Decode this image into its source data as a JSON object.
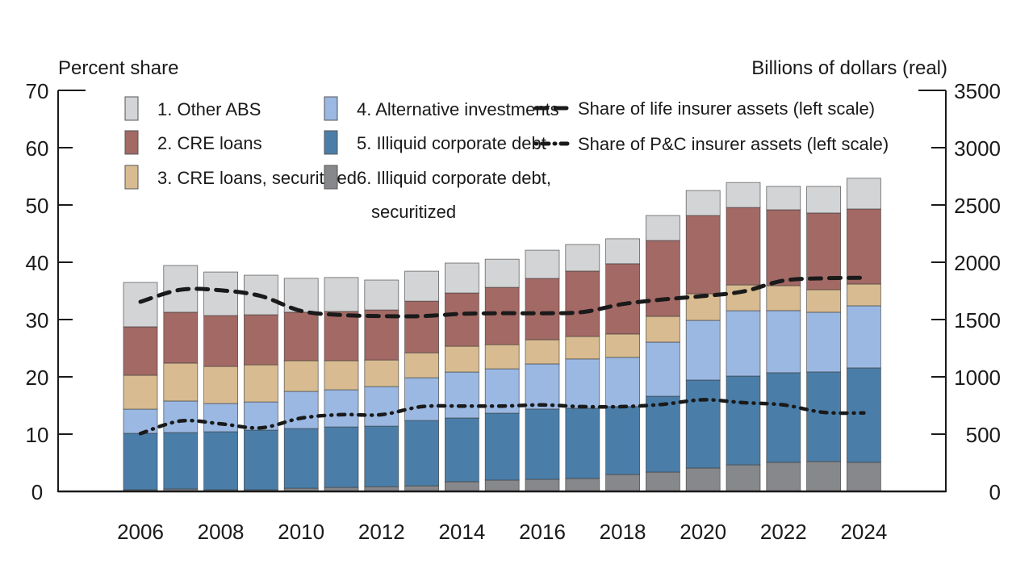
{
  "chart_data": {
    "type": "bar",
    "subtype": "stacked bar with line overlay (dual axis)",
    "title": "",
    "left_axis": {
      "label": "Percent share",
      "range": [
        0,
        70
      ],
      "ticks": [
        "0",
        "10",
        "20",
        "30",
        "40",
        "50",
        "60",
        "70"
      ]
    },
    "right_axis": {
      "label": "Billions of dollars (real)",
      "range": [
        0,
        3500
      ],
      "ticks": [
        "0",
        "500",
        "1000",
        "1500",
        "2000",
        "2500",
        "3000",
        "3500"
      ]
    },
    "x_tick_labels": [
      "2006",
      "2008",
      "2010",
      "2012",
      "2014",
      "2016",
      "2018",
      "2020",
      "2022",
      "2024"
    ],
    "categories": [
      "2006",
      "2007",
      "2008",
      "2009",
      "2010",
      "2011",
      "2012",
      "2013",
      "2014",
      "2015",
      "2016",
      "2017",
      "2018",
      "2019",
      "2020",
      "2021",
      "2022",
      "2023",
      "2024"
    ],
    "grid": false,
    "legend_position": "top-inside",
    "series": [
      {
        "name": "6. Illiquid corporate debt, securitized",
        "legend_lines": [
          "6. Illiquid corporate debt,",
          "securitized"
        ],
        "axis": "right",
        "kind": "bar",
        "color": "#87888c",
        "values": [
          14,
          21,
          14,
          14,
          28,
          35,
          42,
          49,
          85,
          99,
          106,
          113,
          148,
          169,
          204,
          232,
          254,
          261,
          254
        ]
      },
      {
        "name": "5. Illiquid corporate debt",
        "legend_lines": [
          "5. Illiquid corporate debt"
        ],
        "axis": "right",
        "kind": "bar",
        "color": "#4a7ea9",
        "values": [
          493,
          493,
          507,
          521,
          521,
          528,
          528,
          570,
          556,
          584,
          613,
          613,
          592,
          662,
          768,
          775,
          782,
          782,
          824
        ]
      },
      {
        "name": "4. Alternative investments",
        "legend_lines": [
          "4. Alternative investments"
        ],
        "axis": "right",
        "kind": "bar",
        "color": "#9ab8e2",
        "values": [
          211,
          275,
          246,
          246,
          324,
          324,
          345,
          373,
          401,
          387,
          394,
          430,
          430,
          472,
          521,
          570,
          542,
          521,
          542
        ]
      },
      {
        "name": "3. CRE loans, securitized",
        "legend_lines": [
          "3. CRE loans, securitized"
        ],
        "axis": "right",
        "kind": "bar",
        "color": "#d8bb90",
        "values": [
          296,
          331,
          324,
          324,
          268,
          254,
          232,
          218,
          225,
          211,
          211,
          197,
          204,
          225,
          232,
          225,
          218,
          197,
          190
        ]
      },
      {
        "name": "2. CRE loans",
        "legend_lines": [
          "2. CRE loans"
        ],
        "axis": "right",
        "kind": "bar",
        "color": "#a36965",
        "values": [
          423,
          444,
          444,
          437,
          423,
          430,
          437,
          451,
          465,
          500,
          535,
          570,
          613,
          662,
          683,
          676,
          662,
          669,
          655
        ]
      },
      {
        "name": "1. Other ABS",
        "legend_lines": [
          "1. Other ABS"
        ],
        "axis": "right",
        "kind": "bar",
        "color": "#d3d4d6",
        "values": [
          387,
          408,
          380,
          345,
          296,
          296,
          261,
          261,
          261,
          246,
          246,
          232,
          218,
          218,
          218,
          218,
          204,
          232,
          268
        ]
      },
      {
        "name": "Share of life insurer assets (left scale)",
        "axis": "left",
        "kind": "line",
        "style": "dashed",
        "color": "#1a1a1a",
        "values": [
          33.1,
          35.2,
          35.1,
          34.1,
          31.5,
          30.8,
          30.6,
          30.6,
          31.0,
          31.1,
          31.1,
          31.3,
          32.7,
          33.5,
          34.1,
          34.9,
          36.8,
          37.2,
          37.3
        ]
      },
      {
        "name": "Share of P&C insurer assets (left scale)",
        "axis": "left",
        "kind": "line",
        "style": "dash-dot",
        "color": "#1a1a1a",
        "values": [
          10.1,
          12.3,
          11.8,
          11.1,
          12.8,
          13.4,
          13.4,
          14.8,
          14.9,
          14.9,
          15.1,
          14.8,
          14.8,
          15.2,
          16.0,
          15.5,
          15.1,
          13.8,
          13.7
        ]
      }
    ],
    "legend_order": [
      "1. Other ABS",
      "2. CRE loans",
      "3. CRE loans, securitized",
      "4. Alternative investments",
      "5. Illiquid corporate debt",
      "6. Illiquid corporate debt, securitized",
      "Share of life insurer assets (left scale)",
      "Share of P&C insurer assets (left scale)"
    ]
  }
}
